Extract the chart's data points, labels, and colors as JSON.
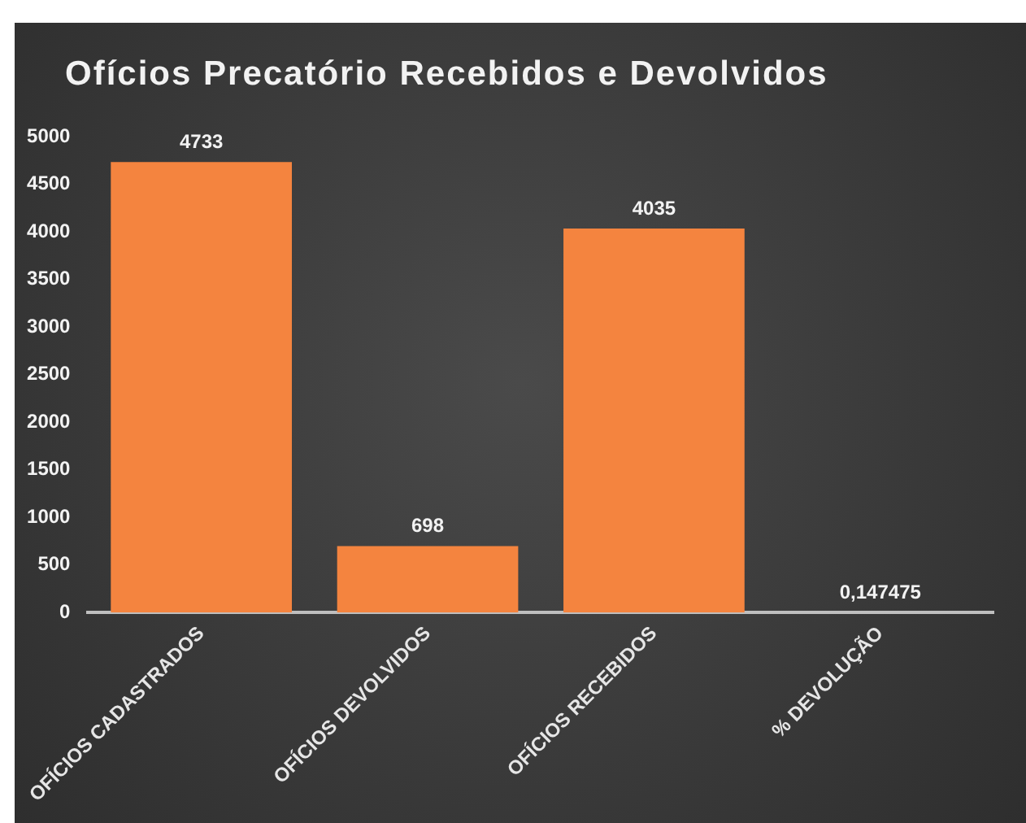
{
  "chart_data": {
    "type": "bar",
    "title": "Ofícios Precatório Recebidos e Devolvidos",
    "categories": [
      "OFÍCIOS CADASTRADOS",
      "OFÍCIOS DEVOLVIDOS",
      "OFÍCIOS RECEBIDOS",
      "% DEVOLUÇÃO"
    ],
    "values": [
      4733,
      698,
      4035,
      0.147475
    ],
    "color": "#f4843f",
    "ylim": [
      0,
      5000
    ],
    "yticks": [
      0,
      500,
      1000,
      1500,
      2000,
      2500,
      3000,
      3500,
      4000,
      4500,
      5000
    ],
    "value_labels": [
      "4733",
      "698",
      "4035",
      "0,147475"
    ],
    "grid": false,
    "legend": false
  }
}
